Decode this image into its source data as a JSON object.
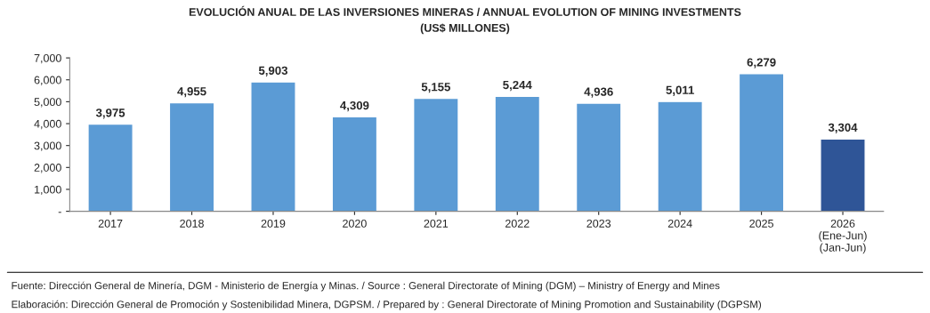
{
  "chart_data": {
    "type": "bar",
    "title": "EVOLUCIÓN ANUAL DE LAS INVERSIONES MINERAS / ANNUAL EVOLUTION OF MINING INVESTMENTS",
    "subtitle": "(US$ MILLONES)",
    "categories": [
      "2017",
      "2018",
      "2019",
      "2020",
      "2021",
      "2022",
      "2023",
      "2024",
      "2025",
      "2026\n(Ene-Jun)\n(Jan-Jun)"
    ],
    "values": [
      3975,
      4955,
      5903,
      4309,
      5155,
      5244,
      4936,
      5011,
      6279,
      3304
    ],
    "colors": [
      "#5b9bd5",
      "#5b9bd5",
      "#5b9bd5",
      "#5b9bd5",
      "#5b9bd5",
      "#5b9bd5",
      "#5b9bd5",
      "#5b9bd5",
      "#5b9bd5",
      "#2f5597"
    ],
    "value_labels": [
      "3,975",
      "4,955",
      "5,903",
      "4,309",
      "5,155",
      "5,244",
      "4,936",
      "5,011",
      "6,279",
      "3,304"
    ],
    "ylim": [
      0,
      7000
    ],
    "yticks": [
      {
        "value": 0,
        "label": "-"
      },
      {
        "value": 1000,
        "label": "1,000"
      },
      {
        "value": 2000,
        "label": "2,000"
      },
      {
        "value": 3000,
        "label": "3,000"
      },
      {
        "value": 4000,
        "label": "4,000"
      },
      {
        "value": 5000,
        "label": "5,000"
      },
      {
        "value": 6000,
        "label": "6,000"
      },
      {
        "value": 7000,
        "label": "7,000"
      }
    ],
    "grid": false,
    "legend": false,
    "annotations": [
      "Fuente: Dirección General de Minería, DGM - Ministerio de Energía y Minas. / Source : General Directorate of Mining (DGM) – Ministry of Energy and Mines",
      "Elaboración: Dirección General de Promoción y Sostenibilidad Minera, DGPSM. / Prepared by : General Directorate of Mining Promotion and Sustainability (DGPSM)"
    ]
  }
}
